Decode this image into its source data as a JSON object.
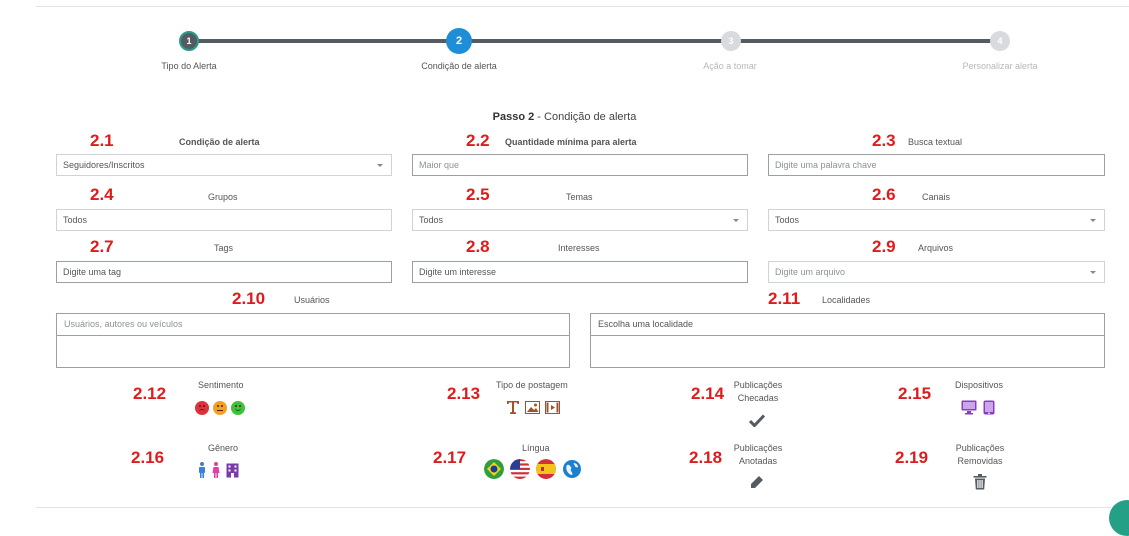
{
  "stepper": {
    "steps": [
      {
        "num": "1",
        "label": "Tipo do Alerta"
      },
      {
        "num": "2",
        "label": "Condição de alerta"
      },
      {
        "num": "3",
        "label": "Ação a tomar"
      },
      {
        "num": "4",
        "label": "Personalizar alerta"
      }
    ]
  },
  "passo": {
    "prefix": "Passo 2",
    "sep": " - ",
    "title": "Condição de alerta"
  },
  "fields": {
    "f21": {
      "num": "2.1",
      "label": "Condição de alerta",
      "value": "Seguidores/Inscritos"
    },
    "f22": {
      "num": "2.2",
      "label": "Quantidade mínima para alerta",
      "placeholder": "Maior que"
    },
    "f23": {
      "num": "2.3",
      "label": "Busca textual",
      "placeholder": "Digite uma palavra chave"
    },
    "f24": {
      "num": "2.4",
      "label": "Grupos",
      "value": "Todos"
    },
    "f25": {
      "num": "2.5",
      "label": "Temas",
      "value": "Todos"
    },
    "f26": {
      "num": "2.6",
      "label": "Canais",
      "value": "Todos"
    },
    "f27": {
      "num": "2.7",
      "label": "Tags",
      "placeholder": "Digite uma tag"
    },
    "f28": {
      "num": "2.8",
      "label": "Interesses",
      "placeholder": "Digite um interesse"
    },
    "f29": {
      "num": "2.9",
      "label": "Arquivos",
      "placeholder": "Digite um arquivo"
    },
    "f210": {
      "num": "2.10",
      "label": "Usuários",
      "placeholder": "Usuários, autores ou veículos"
    },
    "f211": {
      "num": "2.11",
      "label": "Localidades",
      "placeholder": "Escolha uma localidade"
    }
  },
  "filters": {
    "f212": {
      "num": "2.12",
      "label": "Sentimento"
    },
    "f213": {
      "num": "2.13",
      "label": "Tipo de postagem"
    },
    "f214": {
      "num": "2.14",
      "label": "Publicações Checadas"
    },
    "f215": {
      "num": "2.15",
      "label": "Dispositivos"
    },
    "f216": {
      "num": "2.16",
      "label": "Gênero"
    },
    "f217": {
      "num": "2.17",
      "label": "Língua"
    },
    "f218": {
      "num": "2.18",
      "label": "Publicações Anotadas"
    },
    "f219": {
      "num": "2.19",
      "label": "Publicações Removidas"
    }
  },
  "colors": {
    "accent": "#1e8fd6",
    "annotation": "#e01b1b",
    "teal": "#2a9d8f"
  }
}
